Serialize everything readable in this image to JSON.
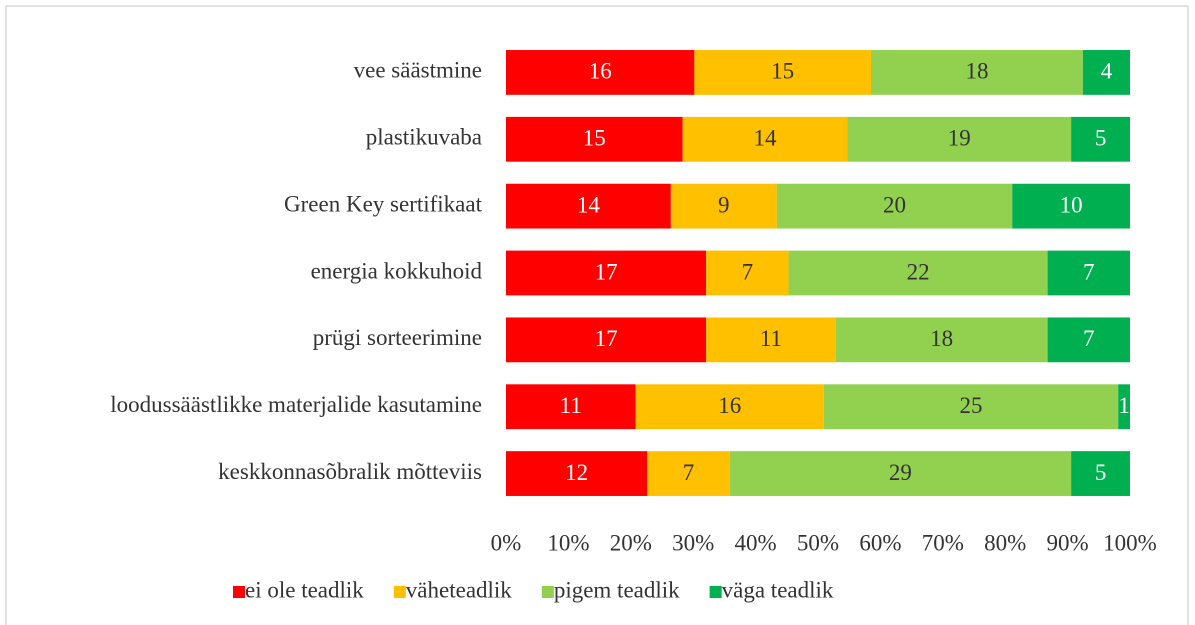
{
  "chart_data": {
    "type": "bar",
    "orientation": "horizontal",
    "stacked": "percent",
    "categories": [
      "vee säästmine",
      "plastikuvaba",
      "Green Key sertifikaat",
      "energia kokkuhoid",
      "prügi sorteerimine",
      "loodussäästlikke materjalide kasutamine",
      "keskkonnasõbralik mõtteviis"
    ],
    "series": [
      {
        "name": "ei ole teadlik",
        "color": "#ff0000",
        "label_color": "#ffffff",
        "values": [
          16,
          15,
          14,
          17,
          17,
          11,
          12
        ]
      },
      {
        "name": "väheteadlik",
        "color": "#ffc000",
        "label_color": "#333333",
        "values": [
          15,
          14,
          9,
          7,
          11,
          16,
          7
        ]
      },
      {
        "name": "pigem teadlik",
        "color": "#92d050",
        "label_color": "#333333",
        "values": [
          18,
          19,
          20,
          22,
          18,
          25,
          29
        ]
      },
      {
        "name": "väga teadlik",
        "color": "#00b050",
        "label_color": "#ffffff",
        "values": [
          4,
          5,
          10,
          7,
          7,
          1,
          5
        ]
      }
    ],
    "xlim": [
      0,
      100
    ],
    "xticks": [
      {
        "value": 0,
        "label": "0%"
      },
      {
        "value": 10,
        "label": "10%"
      },
      {
        "value": 20,
        "label": "20%"
      },
      {
        "value": 30,
        "label": "30%"
      },
      {
        "value": 40,
        "label": "40%"
      },
      {
        "value": 50,
        "label": "50%"
      },
      {
        "value": 60,
        "label": "60%"
      },
      {
        "value": 70,
        "label": "70%"
      },
      {
        "value": 80,
        "label": "80%"
      },
      {
        "value": 90,
        "label": "90%"
      },
      {
        "value": 100,
        "label": "100%"
      }
    ],
    "legend": "bottom"
  }
}
